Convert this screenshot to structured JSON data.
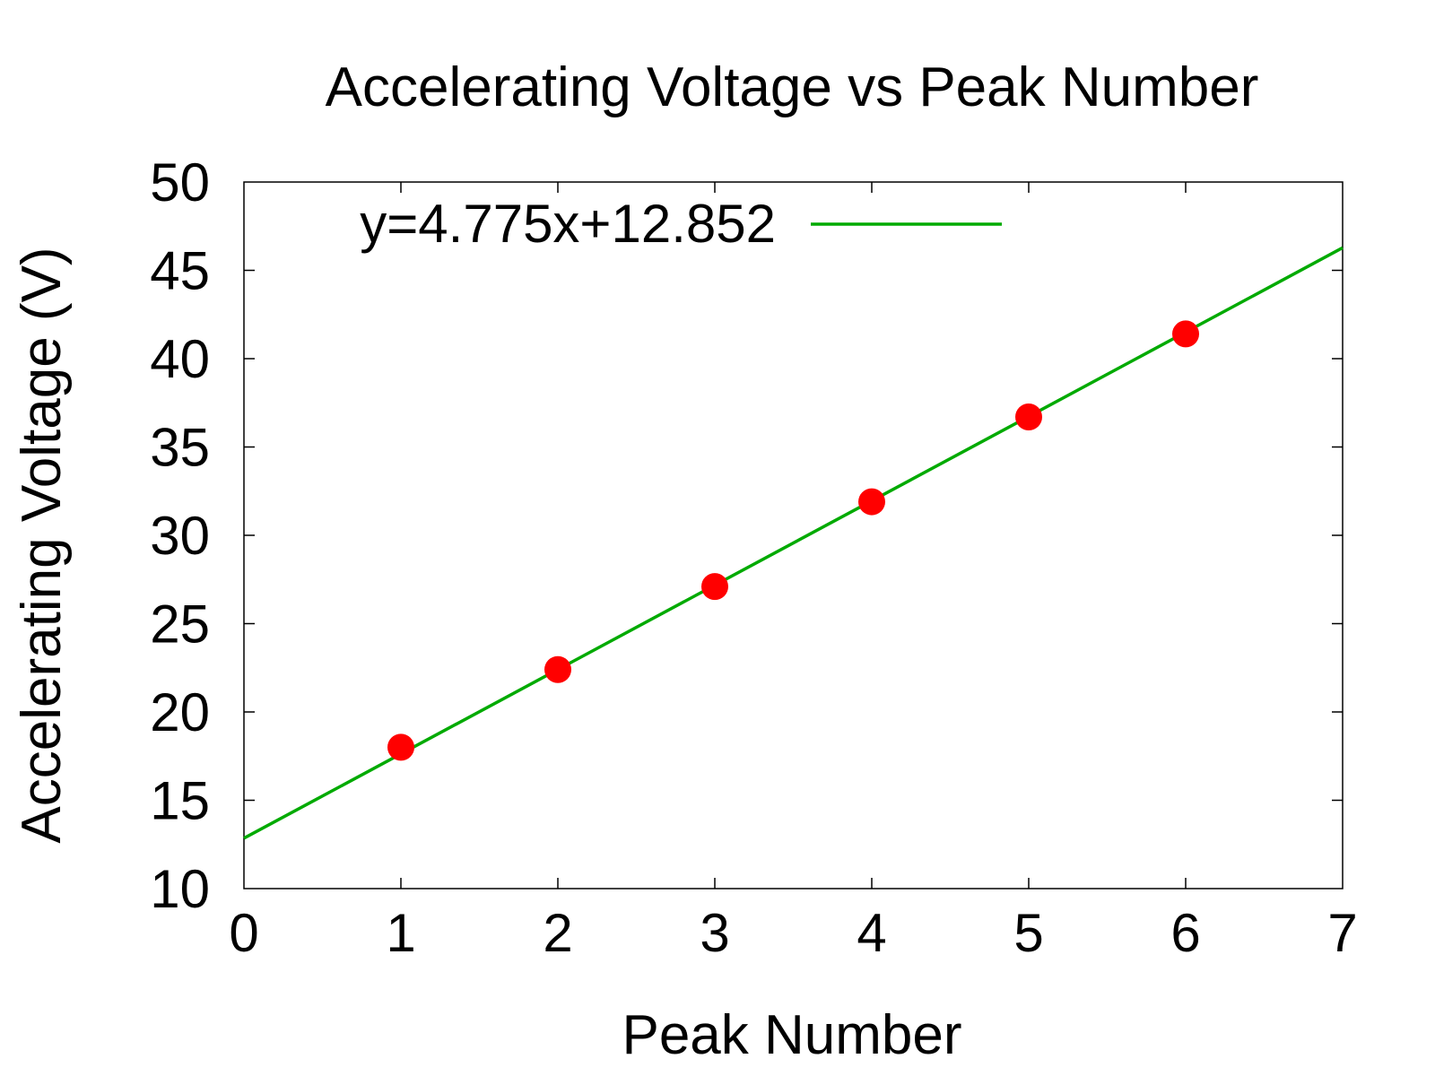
{
  "chart_data": {
    "type": "scatter",
    "title": "Accelerating Voltage vs Peak Number",
    "xlabel": "Peak Number",
    "ylabel": "Accelerating Voltage (V)",
    "xlim": [
      0,
      7
    ],
    "ylim": [
      10,
      50
    ],
    "xticks": [
      0,
      1,
      2,
      3,
      4,
      5,
      6,
      7
    ],
    "yticks": [
      10,
      15,
      20,
      25,
      30,
      35,
      40,
      45,
      50
    ],
    "grid": false,
    "legend_position": "top-left",
    "series": [
      {
        "kind": "points",
        "color": "#ff0000",
        "x": [
          1,
          2,
          3,
          4,
          5,
          6
        ],
        "y": [
          18.0,
          22.4,
          27.1,
          31.9,
          36.7,
          41.4
        ]
      },
      {
        "kind": "fit-line",
        "name": "y=4.775x+12.852",
        "color": "#00aa00",
        "slope": 4.775,
        "intercept": 12.852
      }
    ]
  }
}
